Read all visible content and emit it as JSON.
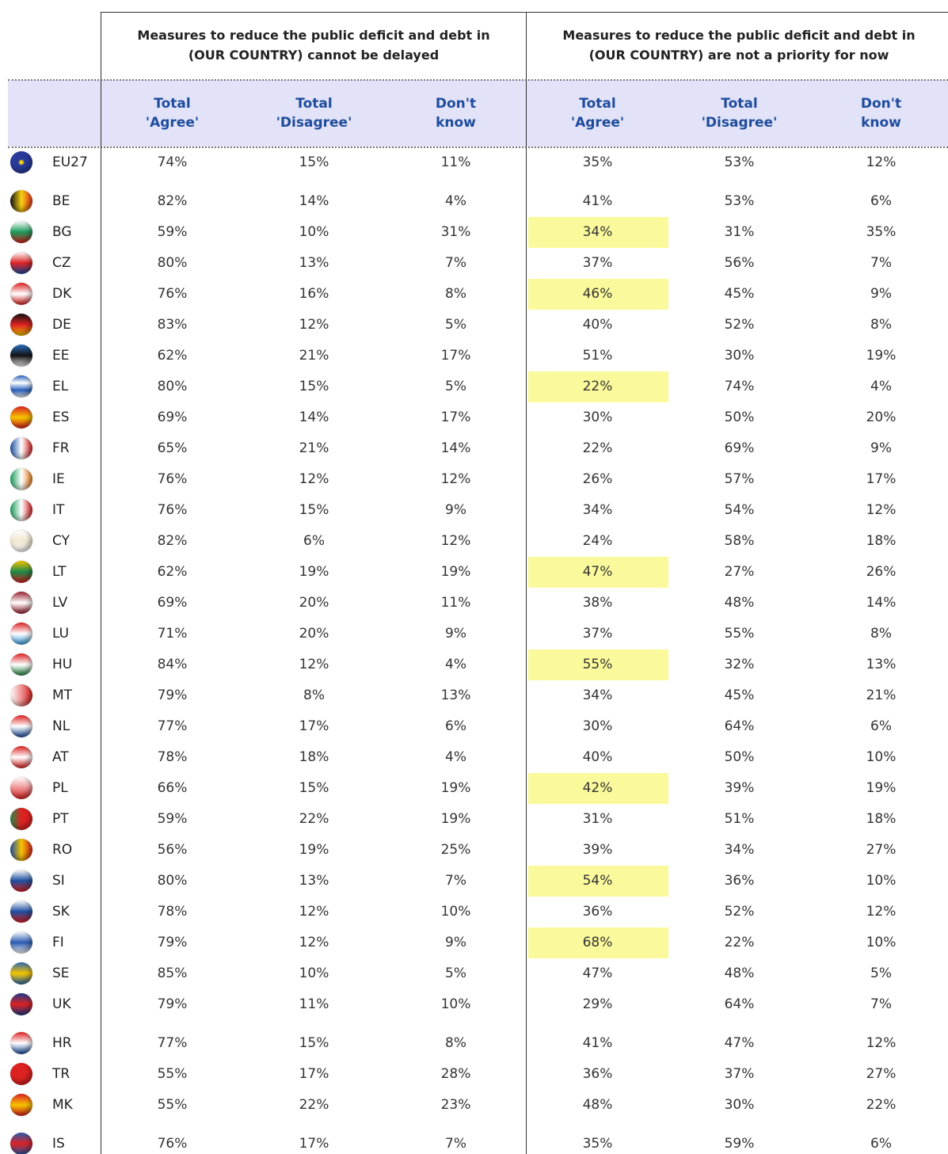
{
  "header": {
    "groups": [
      {
        "lines": [
          "Measures to reduce the public deficit and debt in",
          "(OUR COUNTRY) cannot be delayed"
        ],
        "columns": [
          "Total 'Agree'",
          "Total 'Disagree'",
          "Don't know"
        ]
      },
      {
        "lines": [
          "Measures to reduce the public deficit and debt in",
          "(OUR COUNTRY) are not a priority for now"
        ],
        "columns": [
          "Total 'Agree'",
          "Total 'Disagree'",
          "Don't know"
        ]
      }
    ]
  },
  "table": {
    "sections": [
      [
        [
          "EU27",
          "74%",
          "15%",
          "11%",
          "35%",
          "53%",
          "12%"
        ]
      ],
      [
        [
          "BE",
          "82%",
          "14%",
          "4%",
          "41%",
          "53%",
          "6%"
        ],
        [
          "BG",
          "59%",
          "10%",
          "31%",
          "34%",
          "31%",
          "35%"
        ],
        [
          "CZ",
          "80%",
          "13%",
          "7%",
          "37%",
          "56%",
          "7%"
        ],
        [
          "DK",
          "76%",
          "16%",
          "8%",
          "46%",
          "45%",
          "9%"
        ],
        [
          "DE",
          "83%",
          "12%",
          "5%",
          "40%",
          "52%",
          "8%"
        ],
        [
          "EE",
          "62%",
          "21%",
          "17%",
          "51%",
          "30%",
          "19%"
        ],
        [
          "EL",
          "80%",
          "15%",
          "5%",
          "22%",
          "74%",
          "4%"
        ],
        [
          "ES",
          "69%",
          "14%",
          "17%",
          "30%",
          "50%",
          "20%"
        ],
        [
          "FR",
          "65%",
          "21%",
          "14%",
          "22%",
          "69%",
          "9%"
        ],
        [
          "IE",
          "76%",
          "12%",
          "12%",
          "26%",
          "57%",
          "17%"
        ],
        [
          "IT",
          "76%",
          "15%",
          "9%",
          "34%",
          "54%",
          "12%"
        ],
        [
          "CY",
          "82%",
          "6%",
          "12%",
          "24%",
          "58%",
          "18%"
        ],
        [
          "LT",
          "62%",
          "19%",
          "19%",
          "47%",
          "27%",
          "26%"
        ],
        [
          "LV",
          "69%",
          "20%",
          "11%",
          "38%",
          "48%",
          "14%"
        ],
        [
          "LU",
          "71%",
          "20%",
          "9%",
          "37%",
          "55%",
          "8%"
        ],
        [
          "HU",
          "84%",
          "12%",
          "4%",
          "55%",
          "32%",
          "13%"
        ],
        [
          "MT",
          "79%",
          "8%",
          "13%",
          "34%",
          "45%",
          "21%"
        ],
        [
          "NL",
          "77%",
          "17%",
          "6%",
          "30%",
          "64%",
          "6%"
        ],
        [
          "AT",
          "78%",
          "18%",
          "4%",
          "40%",
          "50%",
          "10%"
        ],
        [
          "PL",
          "66%",
          "15%",
          "19%",
          "42%",
          "39%",
          "19%"
        ],
        [
          "PT",
          "59%",
          "22%",
          "19%",
          "31%",
          "51%",
          "18%"
        ],
        [
          "RO",
          "56%",
          "19%",
          "25%",
          "39%",
          "34%",
          "27%"
        ],
        [
          "SI",
          "80%",
          "13%",
          "7%",
          "54%",
          "36%",
          "10%"
        ],
        [
          "SK",
          "78%",
          "12%",
          "10%",
          "36%",
          "52%",
          "12%"
        ],
        [
          "FI",
          "79%",
          "12%",
          "9%",
          "68%",
          "22%",
          "10%"
        ],
        [
          "SE",
          "85%",
          "10%",
          "5%",
          "47%",
          "48%",
          "5%"
        ],
        [
          "UK",
          "79%",
          "11%",
          "10%",
          "29%",
          "64%",
          "7%"
        ]
      ],
      [
        [
          "HR",
          "77%",
          "15%",
          "8%",
          "41%",
          "47%",
          "12%"
        ],
        [
          "TR",
          "55%",
          "17%",
          "28%",
          "36%",
          "37%",
          "27%"
        ],
        [
          "MK",
          "55%",
          "22%",
          "23%",
          "48%",
          "30%",
          "22%"
        ]
      ],
      [
        [
          "IS",
          "76%",
          "17%",
          "7%",
          "35%",
          "59%",
          "6%"
        ]
      ]
    ]
  }
}
